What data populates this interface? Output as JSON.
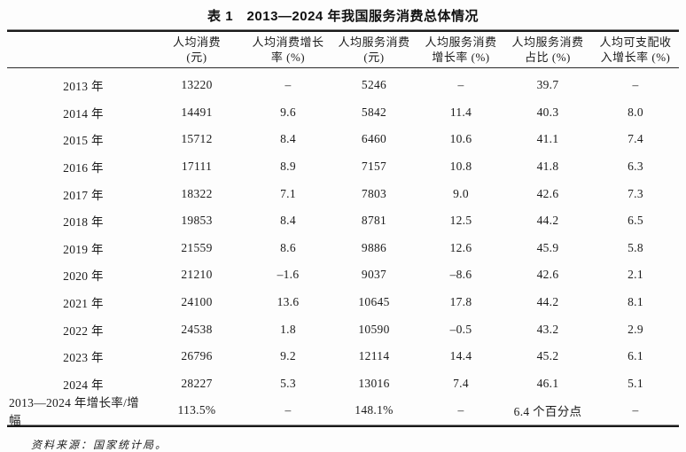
{
  "title": "表 1　2013—2024 年我国服务消费总体情况",
  "table": {
    "headers": [
      "",
      "人均消费\n(元)",
      "人均消费增长\n率 (%)",
      "人均服务消费\n(元)",
      "人均服务消费\n增长率 (%)",
      "人均服务消费\n占比 (%)",
      "人均可支配收\n入增长率 (%)"
    ],
    "rows": [
      {
        "label": "2013 年",
        "values": [
          "13220",
          "–",
          "5246",
          "–",
          "39.7",
          "–"
        ]
      },
      {
        "label": "2014 年",
        "values": [
          "14491",
          "9.6",
          "5842",
          "11.4",
          "40.3",
          "8.0"
        ]
      },
      {
        "label": "2015 年",
        "values": [
          "15712",
          "8.4",
          "6460",
          "10.6",
          "41.1",
          "7.4"
        ]
      },
      {
        "label": "2016 年",
        "values": [
          "17111",
          "8.9",
          "7157",
          "10.8",
          "41.8",
          "6.3"
        ]
      },
      {
        "label": "2017 年",
        "values": [
          "18322",
          "7.1",
          "7803",
          "9.0",
          "42.6",
          "7.3"
        ]
      },
      {
        "label": "2018 年",
        "values": [
          "19853",
          "8.4",
          "8781",
          "12.5",
          "44.2",
          "6.5"
        ]
      },
      {
        "label": "2019 年",
        "values": [
          "21559",
          "8.6",
          "9886",
          "12.6",
          "45.9",
          "5.8"
        ]
      },
      {
        "label": "2020 年",
        "values": [
          "21210",
          "–1.6",
          "9037",
          "–8.6",
          "42.6",
          "2.1"
        ]
      },
      {
        "label": "2021 年",
        "values": [
          "24100",
          "13.6",
          "10645",
          "17.8",
          "44.2",
          "8.1"
        ]
      },
      {
        "label": "2022 年",
        "values": [
          "24538",
          "1.8",
          "10590",
          "–0.5",
          "43.2",
          "2.9"
        ]
      },
      {
        "label": "2023 年",
        "values": [
          "26796",
          "9.2",
          "12114",
          "14.4",
          "45.2",
          "6.1"
        ]
      },
      {
        "label": "2024 年",
        "values": [
          "28227",
          "5.3",
          "13016",
          "7.4",
          "46.1",
          "5.1"
        ]
      },
      {
        "label": "2013—2024 年增长率/增幅",
        "values": [
          "113.5%",
          "–",
          "148.1%",
          "–",
          "6.4 个百分点",
          "–"
        ],
        "label_left": true
      }
    ]
  },
  "footer": "资料来源：国家统计局。",
  "colors": {
    "text": "#1c1c1c",
    "rule": "#1a1a1a",
    "background": "#fdfdfd"
  }
}
